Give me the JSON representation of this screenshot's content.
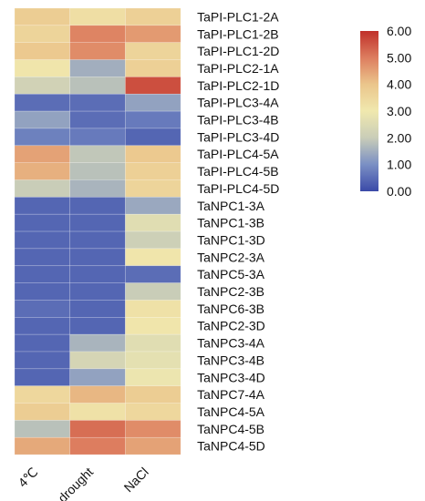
{
  "chart_data": {
    "type": "heatmap",
    "title": "",
    "xlabel": "",
    "ylabel": "",
    "columns": [
      "4℃",
      "drought",
      "NaCl"
    ],
    "rows": [
      "TaPI-PLC1-2A",
      "TaPI-PLC1-2B",
      "TaPI-PLC1-2D",
      "TaPI-PLC2-1A",
      "TaPI-PLC2-1D",
      "TaPI-PLC3-4A",
      "TaPI-PLC3-4B",
      "TaPI-PLC3-4D",
      "TaPI-PLC4-5A",
      "TaPI-PLC4-5B",
      "TaPI-PLC4-5D",
      "TaNPC1-3A",
      "TaNPC1-3B",
      "TaNPC1-3D",
      "TaNPC2-3A",
      "TaNPC5-3A",
      "TaNPC2-3B",
      "TaNPC6-3B",
      "TaNPC2-3D",
      "TaNPC3-4A",
      "TaNPC3-4B",
      "TaNPC3-4D",
      "TaNPC7-4A",
      "TaNPC4-5A",
      "TaNPC4-5B",
      "TaNPC4-5D"
    ],
    "values": [
      [
        3.8,
        3.3,
        3.7
      ],
      [
        3.6,
        4.9,
        4.6
      ],
      [
        3.9,
        4.8,
        3.6
      ],
      [
        3.1,
        1.5,
        3.7
      ],
      [
        2.2,
        1.8,
        5.6
      ],
      [
        0.5,
        0.5,
        1.3
      ],
      [
        1.3,
        0.5,
        0.7
      ],
      [
        0.8,
        0.7,
        0.4
      ],
      [
        4.5,
        1.9,
        3.9
      ],
      [
        4.3,
        1.8,
        3.7
      ],
      [
        2.0,
        1.6,
        3.6
      ],
      [
        0.4,
        0.4,
        1.4
      ],
      [
        0.4,
        0.4,
        2.6
      ],
      [
        0.4,
        0.4,
        2.1
      ],
      [
        0.4,
        0.4,
        3.1
      ],
      [
        0.4,
        0.4,
        0.5
      ],
      [
        0.4,
        0.4,
        2.0
      ],
      [
        0.5,
        0.4,
        3.2
      ],
      [
        0.4,
        0.4,
        3.1
      ],
      [
        0.4,
        1.6,
        2.6
      ],
      [
        0.4,
        2.3,
        2.7
      ],
      [
        0.4,
        1.3,
        2.9
      ],
      [
        3.5,
        4.2,
        3.8
      ],
      [
        3.8,
        3.2,
        3.5
      ],
      [
        1.8,
        5.2,
        4.8
      ],
      [
        4.4,
        5.0,
        4.5
      ]
    ],
    "colorbar": {
      "min": 0,
      "max": 6,
      "ticks": [
        "0.00",
        "1.00",
        "2.00",
        "3.00",
        "4.00",
        "5.00",
        "6.00"
      ],
      "colors": [
        "#3a4fa8",
        "#7f97c8",
        "#f0e9b0",
        "#e9c48f",
        "#c0392b"
      ]
    }
  }
}
